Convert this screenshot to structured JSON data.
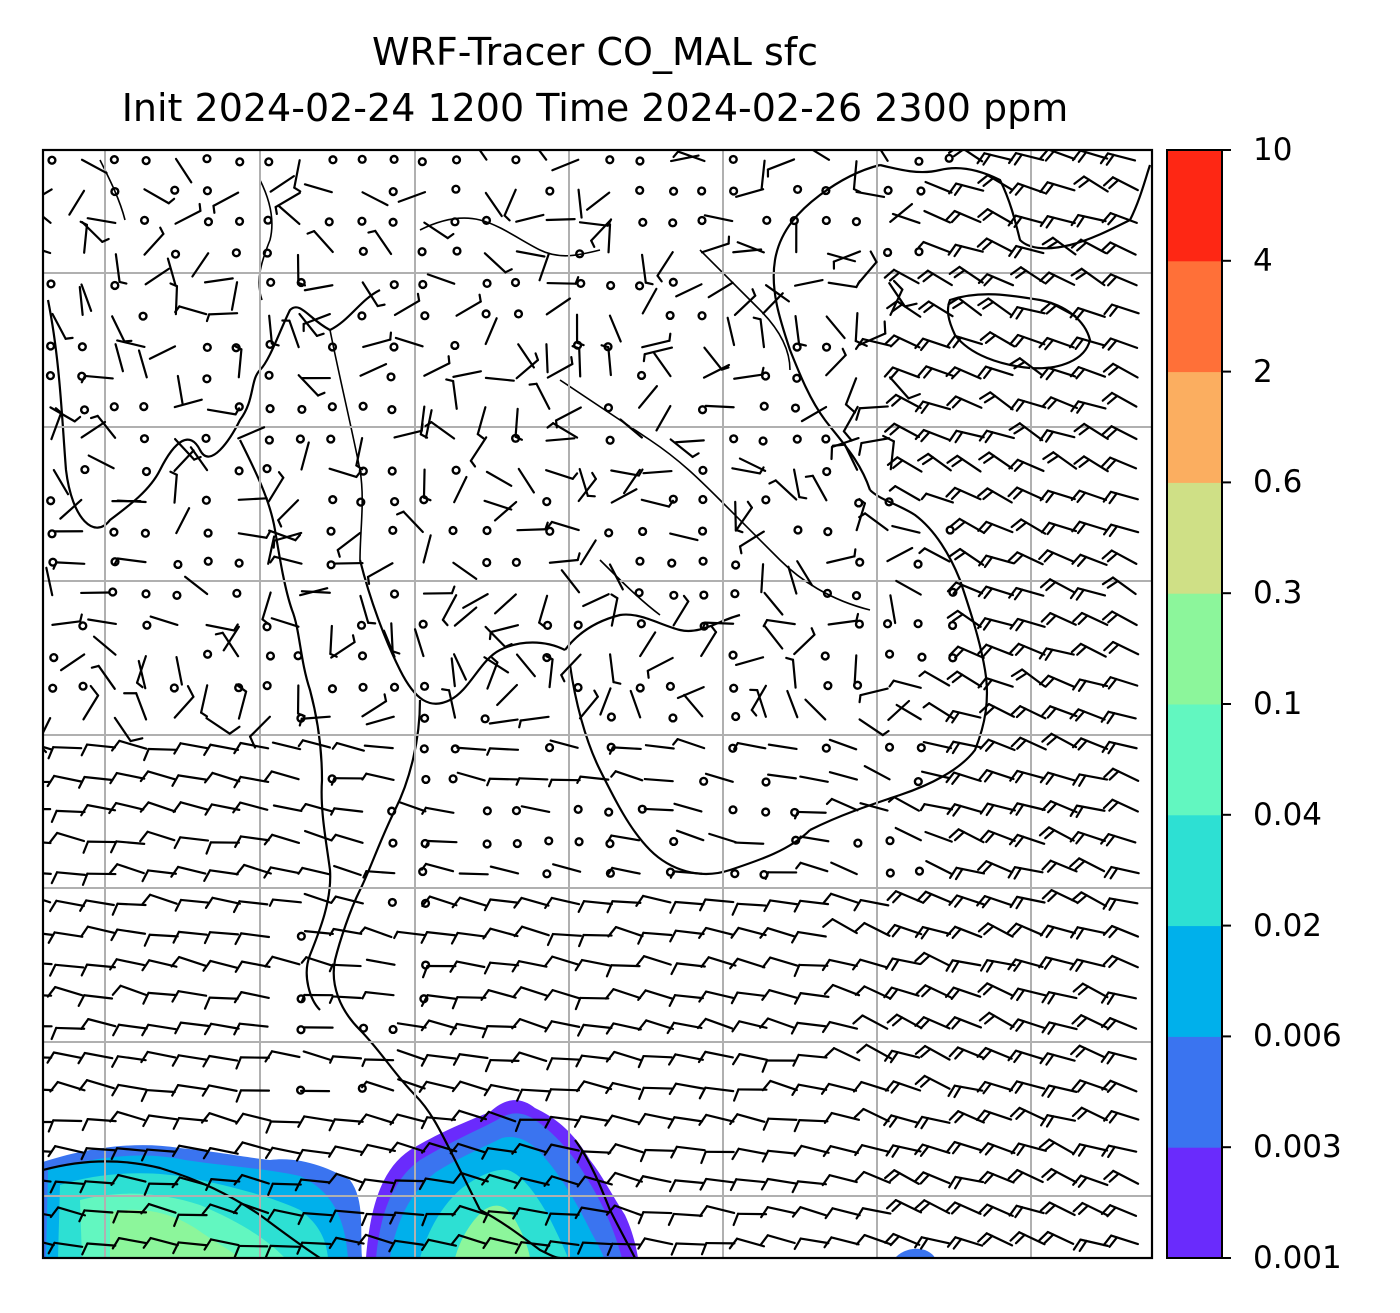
{
  "title": {
    "line1": "WRF-Tracer CO_MAL sfc",
    "line2": "Init 2024-02-24 1200 Time 2024-02-26 2300 ppm"
  },
  "colorbar": {
    "tick_labels": [
      "10",
      "4",
      "2",
      "0.6",
      "0.3",
      "0.1",
      "0.04",
      "0.02",
      "0.006",
      "0.003",
      "0.001"
    ],
    "levels": [
      0.001,
      0.003,
      0.006,
      0.02,
      0.04,
      0.1,
      0.3,
      0.6,
      2,
      4,
      10
    ],
    "colors": [
      "#6a2bfc",
      "#3a74f0",
      "#00b0eb",
      "#2de0d3",
      "#62f7c0",
      "#8cf69b",
      "#cfe086",
      "#fbae60",
      "#ff7038",
      "#fe2714"
    ]
  },
  "map": {
    "gridlines": true,
    "wind_barbs": true,
    "coastlines": true,
    "plume_color_scale": "rainbow"
  }
}
